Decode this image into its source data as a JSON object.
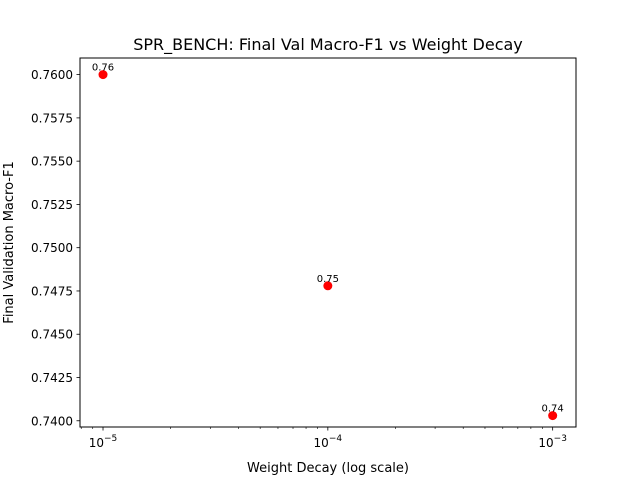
{
  "chart_data": {
    "type": "scatter",
    "title": "SPR_BENCH: Final Val Macro-F1 vs Weight Decay",
    "xlabel": "Weight Decay (log scale)",
    "ylabel": "Final Validation Macro-F1",
    "xscale": "log",
    "xlim": [
      7.9e-06,
      0.00127
    ],
    "ylim": [
      0.73964,
      0.76096
    ],
    "grid": false,
    "x": [
      1e-05,
      0.0001,
      0.001
    ],
    "y": [
      0.76,
      0.7478,
      0.7403
    ],
    "data_labels": [
      "0.76",
      "0.75",
      "0.74"
    ],
    "x_ticks": [
      {
        "value": 1e-05,
        "base": "10",
        "exp": "−5"
      },
      {
        "value": 0.0001,
        "base": "10",
        "exp": "−4"
      },
      {
        "value": 0.001,
        "base": "10",
        "exp": "−3"
      }
    ],
    "y_ticks": [
      "0.7400",
      "0.7425",
      "0.7450",
      "0.7475",
      "0.7500",
      "0.7525",
      "0.7550",
      "0.7575",
      "0.7600"
    ],
    "marker_color": "#ff0000"
  }
}
